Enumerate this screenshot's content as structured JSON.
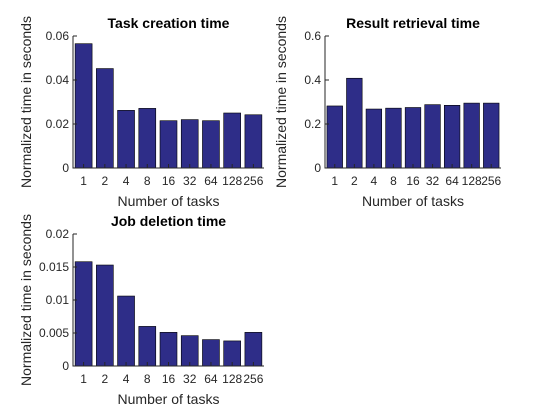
{
  "chart_data": [
    {
      "type": "bar",
      "title": "Task creation time",
      "xlabel": "Number of tasks",
      "ylabel": "Normalized time in seconds",
      "categories": [
        "1",
        "2",
        "4",
        "8",
        "16",
        "32",
        "64",
        "128",
        "256"
      ],
      "values": [
        0.0565,
        0.0452,
        0.0262,
        0.0271,
        0.0215,
        0.022,
        0.0215,
        0.025,
        0.0242
      ],
      "ylim": [
        0,
        0.06
      ],
      "yticks": [
        "0",
        "0.02",
        "0.04",
        "0.06"
      ],
      "ytick_values": [
        0,
        0.02,
        0.04,
        0.06
      ],
      "bar_color": "#2e2d88",
      "grid": false
    },
    {
      "type": "bar",
      "title": "Result retrieval time",
      "xlabel": "Number of tasks",
      "ylabel": "Normalized time in seconds",
      "categories": [
        "1",
        "2",
        "4",
        "8",
        "16",
        "32",
        "64",
        "128",
        "256"
      ],
      "values": [
        0.282,
        0.408,
        0.268,
        0.272,
        0.275,
        0.288,
        0.285,
        0.295,
        0.295
      ],
      "ylim": [
        0,
        0.6
      ],
      "yticks": [
        "0",
        "0.2",
        "0.4",
        "0.6"
      ],
      "ytick_values": [
        0,
        0.2,
        0.4,
        0.6
      ],
      "bar_color": "#2e2d88",
      "grid": false
    },
    {
      "type": "bar",
      "title": "Job deletion time",
      "xlabel": "Number of tasks",
      "ylabel": "Normalized time in seconds",
      "categories": [
        "1",
        "2",
        "4",
        "8",
        "16",
        "32",
        "64",
        "128",
        "256"
      ],
      "values": [
        0.0158,
        0.0153,
        0.0106,
        0.006,
        0.0051,
        0.0046,
        0.004,
        0.0038,
        0.0051
      ],
      "ylim": [
        0,
        0.02
      ],
      "yticks": [
        "0",
        "0.005",
        "0.01",
        "0.015",
        "0.02"
      ],
      "ytick_values": [
        0,
        0.005,
        0.01,
        0.015,
        0.02
      ],
      "bar_color": "#2e2d88",
      "grid": false
    }
  ]
}
